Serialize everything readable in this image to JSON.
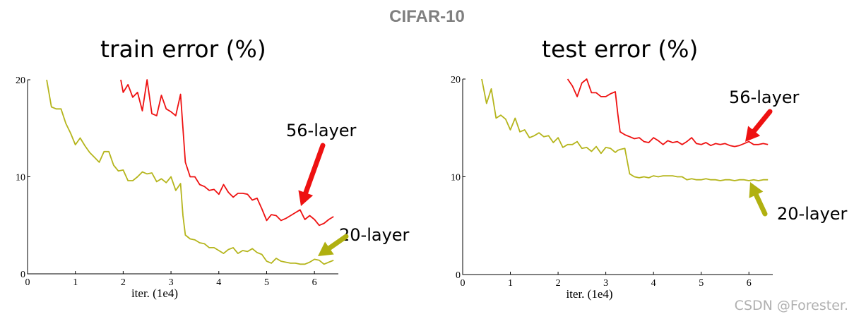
{
  "header": {
    "title": "CIFAR-10"
  },
  "watermark": "CSDN @Forester.",
  "colors": {
    "series_56": "#ee1111",
    "series_20": "#b5b51c",
    "arrow_red": "#ee1111",
    "arrow_olive": "#b0b010"
  },
  "chart_data": [
    {
      "type": "line",
      "title": "train error (%)",
      "xlabel": "iter. (1e4)",
      "ylabel": "",
      "xlim": [
        0,
        6.5
      ],
      "ylim": [
        0,
        20
      ],
      "xticks": [
        "0",
        "1",
        "2",
        "3",
        "4",
        "5",
        "6"
      ],
      "yticks": [
        "0",
        "10",
        "20"
      ],
      "series": [
        {
          "name": "56-layer",
          "x": [
            1.95,
            2.0,
            2.1,
            2.2,
            2.3,
            2.4,
            2.5,
            2.6,
            2.7,
            2.8,
            2.9,
            3.0,
            3.1,
            3.2,
            3.25,
            3.3,
            3.4,
            3.5,
            3.6,
            3.7,
            3.8,
            3.9,
            4.0,
            4.1,
            4.2,
            4.3,
            4.4,
            4.5,
            4.6,
            4.7,
            4.8,
            4.9,
            5.0,
            5.1,
            5.2,
            5.3,
            5.4,
            5.5,
            5.6,
            5.7,
            5.8,
            5.9,
            6.0,
            6.1,
            6.2,
            6.3,
            6.4
          ],
          "values": [
            20.0,
            18.7,
            19.5,
            18.2,
            18.7,
            16.8,
            20.0,
            16.5,
            16.3,
            18.4,
            17.0,
            16.7,
            16.3,
            18.5,
            15.0,
            11.5,
            10.0,
            10.0,
            9.2,
            9.0,
            8.6,
            8.7,
            8.2,
            9.2,
            8.4,
            7.9,
            8.3,
            8.3,
            8.2,
            7.6,
            7.8,
            6.7,
            5.5,
            6.1,
            6.0,
            5.5,
            5.7,
            6.0,
            6.3,
            6.6,
            5.6,
            6.0,
            5.6,
            5.0,
            5.2,
            5.6,
            5.9
          ]
        },
        {
          "name": "20-layer",
          "x": [
            0.4,
            0.5,
            0.6,
            0.7,
            0.8,
            0.9,
            1.0,
            1.1,
            1.2,
            1.3,
            1.4,
            1.5,
            1.6,
            1.7,
            1.8,
            1.9,
            2.0,
            2.1,
            2.2,
            2.3,
            2.4,
            2.5,
            2.6,
            2.7,
            2.8,
            2.9,
            3.0,
            3.1,
            3.2,
            3.25,
            3.3,
            3.4,
            3.5,
            3.6,
            3.7,
            3.8,
            3.9,
            4.0,
            4.1,
            4.2,
            4.3,
            4.4,
            4.5,
            4.6,
            4.7,
            4.8,
            4.9,
            5.0,
            5.1,
            5.2,
            5.3,
            5.4,
            5.5,
            5.6,
            5.7,
            5.8,
            5.9,
            6.0,
            6.1,
            6.2,
            6.3,
            6.4
          ],
          "values": [
            20.0,
            17.2,
            17.0,
            17.0,
            15.5,
            14.5,
            13.3,
            14.0,
            13.2,
            12.5,
            12.0,
            11.5,
            12.6,
            12.6,
            11.2,
            10.6,
            10.7,
            9.6,
            9.6,
            10.0,
            10.5,
            10.3,
            10.4,
            9.5,
            9.8,
            9.4,
            10.0,
            8.6,
            9.3,
            6.0,
            4.0,
            3.6,
            3.5,
            3.2,
            3.1,
            2.7,
            2.7,
            2.4,
            2.1,
            2.5,
            2.7,
            2.1,
            2.4,
            2.3,
            2.6,
            2.2,
            2.0,
            1.3,
            1.1,
            1.6,
            1.3,
            1.2,
            1.1,
            1.1,
            1.0,
            1.0,
            1.2,
            1.5,
            1.4,
            1.0,
            1.2,
            1.4
          ]
        }
      ],
      "annotations": [
        "56-layer",
        "20-layer"
      ]
    },
    {
      "type": "line",
      "title": "test error (%)",
      "xlabel": "iter. (1e4)",
      "ylabel": "",
      "xlim": [
        0,
        6.5
      ],
      "ylim": [
        0,
        20
      ],
      "xticks": [
        "0",
        "1",
        "2",
        "3",
        "4",
        "5",
        "6"
      ],
      "yticks": [
        "0",
        "10",
        "20"
      ],
      "series": [
        {
          "name": "56-layer",
          "x": [
            2.2,
            2.3,
            2.4,
            2.5,
            2.6,
            2.7,
            2.8,
            2.9,
            3.0,
            3.1,
            3.2,
            3.25,
            3.3,
            3.4,
            3.5,
            3.6,
            3.7,
            3.8,
            3.9,
            4.0,
            4.1,
            4.2,
            4.3,
            4.4,
            4.5,
            4.6,
            4.7,
            4.8,
            4.9,
            5.0,
            5.1,
            5.2,
            5.3,
            5.4,
            5.5,
            5.6,
            5.7,
            5.8,
            5.9,
            6.0,
            6.1,
            6.2,
            6.3,
            6.4
          ],
          "values": [
            20.0,
            19.3,
            18.2,
            19.6,
            20.0,
            18.6,
            18.6,
            18.2,
            18.2,
            18.5,
            18.7,
            16.5,
            14.6,
            14.3,
            14.1,
            13.9,
            14.0,
            13.6,
            13.5,
            14.0,
            13.7,
            13.3,
            13.7,
            13.5,
            13.6,
            13.3,
            13.6,
            14.0,
            13.4,
            13.3,
            13.5,
            13.2,
            13.4,
            13.3,
            13.4,
            13.2,
            13.1,
            13.2,
            13.4,
            13.6,
            13.3,
            13.3,
            13.4,
            13.3
          ]
        },
        {
          "name": "20-layer",
          "x": [
            0.4,
            0.5,
            0.6,
            0.7,
            0.8,
            0.9,
            1.0,
            1.1,
            1.2,
            1.3,
            1.4,
            1.5,
            1.6,
            1.7,
            1.8,
            1.9,
            2.0,
            2.1,
            2.2,
            2.3,
            2.4,
            2.5,
            2.6,
            2.7,
            2.8,
            2.9,
            3.0,
            3.1,
            3.2,
            3.25,
            3.3,
            3.4,
            3.5,
            3.6,
            3.7,
            3.8,
            3.9,
            4.0,
            4.1,
            4.2,
            4.3,
            4.4,
            4.5,
            4.6,
            4.7,
            4.8,
            4.9,
            5.0,
            5.1,
            5.2,
            5.3,
            5.4,
            5.5,
            5.6,
            5.7,
            5.8,
            5.9,
            6.0,
            6.1,
            6.2,
            6.3,
            6.4
          ],
          "values": [
            20.0,
            17.5,
            19.0,
            16.0,
            16.3,
            15.9,
            14.8,
            16.0,
            14.6,
            14.8,
            14.0,
            14.2,
            14.5,
            14.1,
            14.2,
            13.5,
            14.0,
            13.0,
            13.3,
            13.3,
            13.6,
            12.9,
            13.0,
            12.6,
            13.1,
            12.4,
            13.0,
            12.9,
            12.5,
            12.7,
            12.8,
            12.9,
            10.3,
            10.0,
            9.9,
            10.0,
            9.9,
            10.1,
            10.0,
            10.1,
            10.1,
            10.1,
            10.0,
            10.0,
            9.7,
            9.8,
            9.7,
            9.7,
            9.8,
            9.7,
            9.7,
            9.6,
            9.7,
            9.7,
            9.6,
            9.7,
            9.7,
            9.6,
            9.7,
            9.6,
            9.7,
            9.7
          ]
        }
      ],
      "annotations": [
        "56-layer",
        "20-layer"
      ]
    }
  ]
}
